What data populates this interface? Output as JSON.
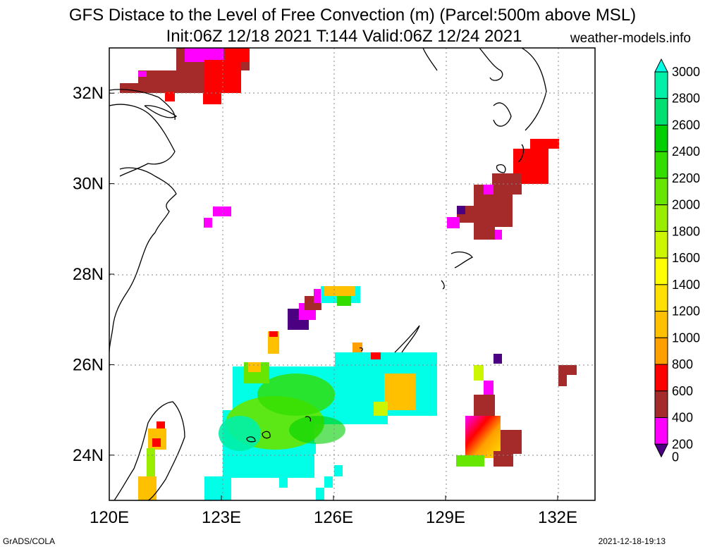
{
  "header": {
    "title_line1": "GFS Distace to the Level of Free Convection (m) (Parcel:500m above MSL)",
    "title_line2": "Init:06Z 12/18 2021 T:144 Valid:06Z 12/24 2021",
    "site": "weather-models.info"
  },
  "footer": {
    "left": "GrADS/COLA",
    "right": "2021-12-18-19:13"
  },
  "map": {
    "lon_labels": [
      "120E",
      "123E",
      "126E",
      "129E",
      "132E"
    ],
    "lon_values": [
      120,
      123,
      126,
      129,
      132
    ],
    "lat_labels": [
      "32N",
      "30N",
      "28N",
      "26N",
      "24N"
    ],
    "lat_values": [
      32,
      30,
      28,
      26,
      24
    ],
    "lon_range": [
      120,
      133
    ],
    "lat_range": [
      23,
      33
    ],
    "grid": "dotted"
  },
  "colorbar": {
    "labels": [
      "3000",
      "2800",
      "2600",
      "2400",
      "2200",
      "2000",
      "1800",
      "1600",
      "1400",
      "1200",
      "1000",
      "800",
      "600",
      "400",
      "200",
      "0"
    ],
    "colors": [
      "#00ffe6",
      "#00f0a8",
      "#00e070",
      "#00d000",
      "#33dd00",
      "#66e600",
      "#99ee00",
      "#ccf500",
      "#ffff00",
      "#ffe000",
      "#ffc000",
      "#ffa000",
      "#ff0000",
      "#a52a2a",
      "#ff00ff",
      "#4b0082"
    ]
  }
}
